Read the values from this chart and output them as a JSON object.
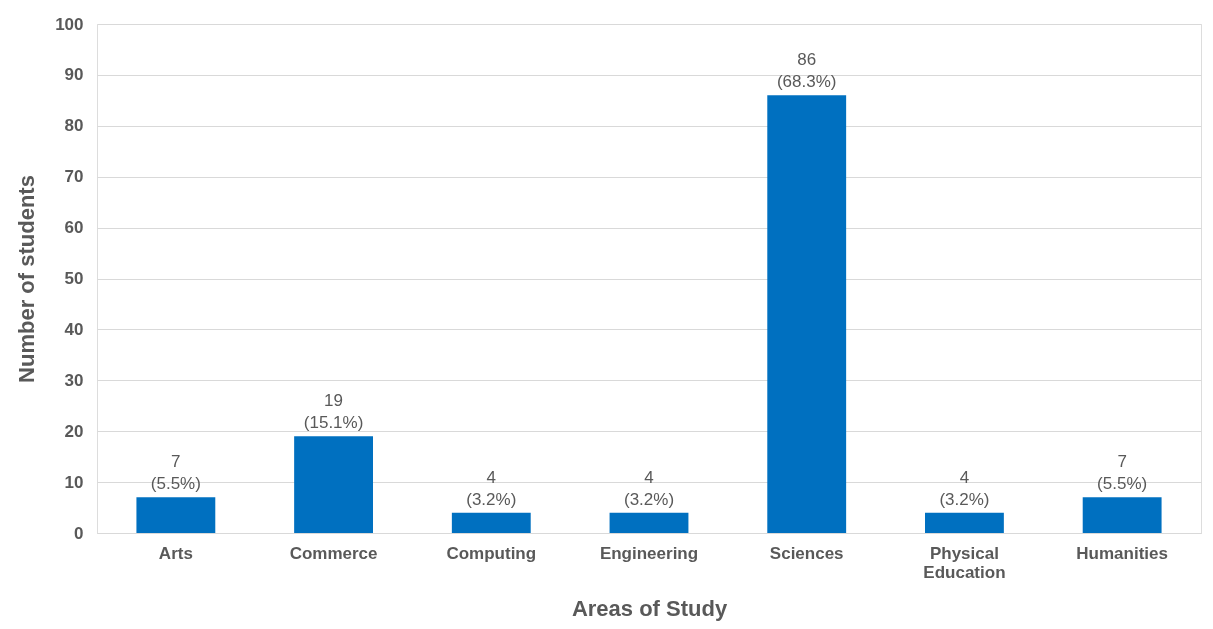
{
  "chart_data": {
    "type": "bar",
    "xlabel": "Areas of Study",
    "ylabel": "Number of students",
    "categories": [
      "Arts",
      "Commerce",
      "Computing",
      "Engineering",
      "Sciences",
      "Physical Education",
      "Humanities"
    ],
    "values": [
      7,
      19,
      4,
      4,
      86,
      4,
      7
    ],
    "value_labels": [
      "7\n(5.5%)",
      "19\n(15.1%)",
      "4\n(3.2%)",
      "4\n(3.2%)",
      "86\n(68.3%)",
      "4\n(3.2%)",
      "7\n(5.5%)"
    ],
    "color": "#0070c0",
    "ylim": [
      0,
      100
    ],
    "yticks": [
      0,
      10,
      20,
      30,
      40,
      50,
      60,
      70,
      80,
      90,
      100
    ],
    "grid": "y"
  }
}
